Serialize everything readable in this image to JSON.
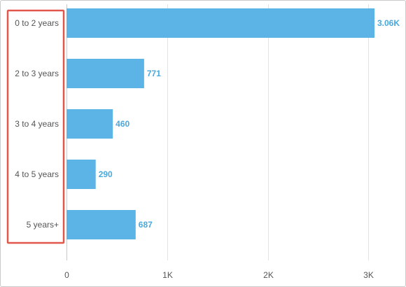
{
  "chart_data": {
    "type": "bar",
    "orientation": "horizontal",
    "categories": [
      "0 to 2 years",
      "2 to 3 years",
      "3 to 4 years",
      "4 to 5 years",
      "5 years+"
    ],
    "values": [
      3060,
      771,
      460,
      290,
      687
    ],
    "data_labels": [
      "3.06K",
      "771",
      "460",
      "290",
      "687"
    ],
    "xlim": [
      0,
      3060
    ],
    "x_ticks": [
      0,
      1000,
      2000,
      3000
    ],
    "x_tick_labels": [
      "0",
      "1K",
      "2K",
      "3K"
    ],
    "grid": "vertical",
    "title": "",
    "xlabel": "",
    "ylabel": "",
    "legend": "none",
    "highlight": "category labels outlined in red box"
  },
  "colors": {
    "bar": "#5bb4e5",
    "data_label": "#4aa8dc",
    "gridline": "#e3e3e3",
    "axis_text": "#555555",
    "highlight_box": "#e2574c"
  }
}
